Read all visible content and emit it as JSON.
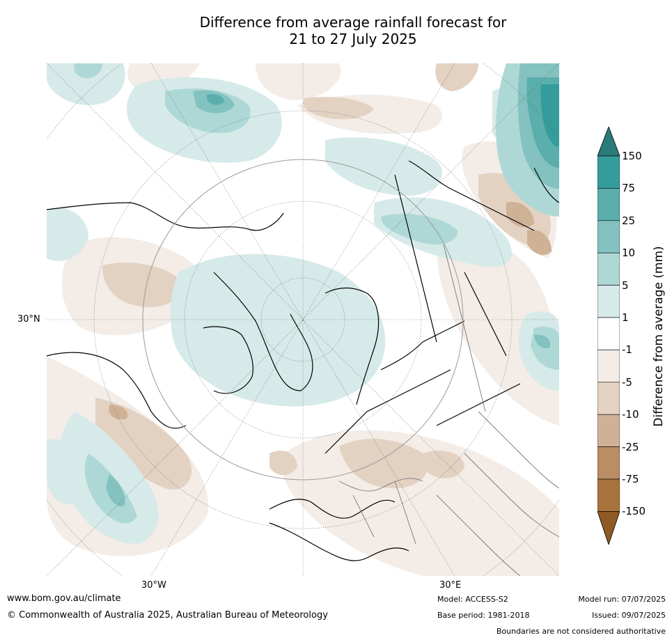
{
  "title": {
    "line1": "Difference from average rainfall forecast for",
    "line2": "21 to 27 July 2025"
  },
  "map": {
    "projection": "north polar stereographic",
    "lat_label": "30°N",
    "lon_labels": [
      "30°W",
      "30°E"
    ]
  },
  "colorbar": {
    "title": "Difference from average (mm)",
    "ticks": [
      "150",
      "75",
      "25",
      "10",
      "5",
      "1",
      "-1",
      "-5",
      "-10",
      "-25",
      "-75",
      "-150"
    ],
    "colors": {
      "over": "#2b7b7a",
      "c75_150": "#349d9b",
      "c25_75": "#5aaeac",
      "c10_25": "#83c2c0",
      "c5_10": "#aed8d6",
      "c1_5": "#d6eae9",
      "neutral": "#ffffff",
      "m1_m5": "#f3ece7",
      "m5_m10": "#e3d1c2",
      "m10_m25": "#cfb296",
      "m25_m75": "#ba8d64",
      "m75_m150": "#a8733d",
      "under": "#8f5a25"
    }
  },
  "footer": {
    "url": "www.bom.gov.au/climate",
    "copyright": "© Commonwealth of Australia 2025, Australian Bureau of Meteorology",
    "model": "Model: ACCESS-S2",
    "base_period": "Base period: 1981-2018",
    "model_run": "Model run: 07/07/2025",
    "issued": "Issued: 09/07/2025",
    "disclaimer": "Boundaries are not considered authoritative"
  }
}
